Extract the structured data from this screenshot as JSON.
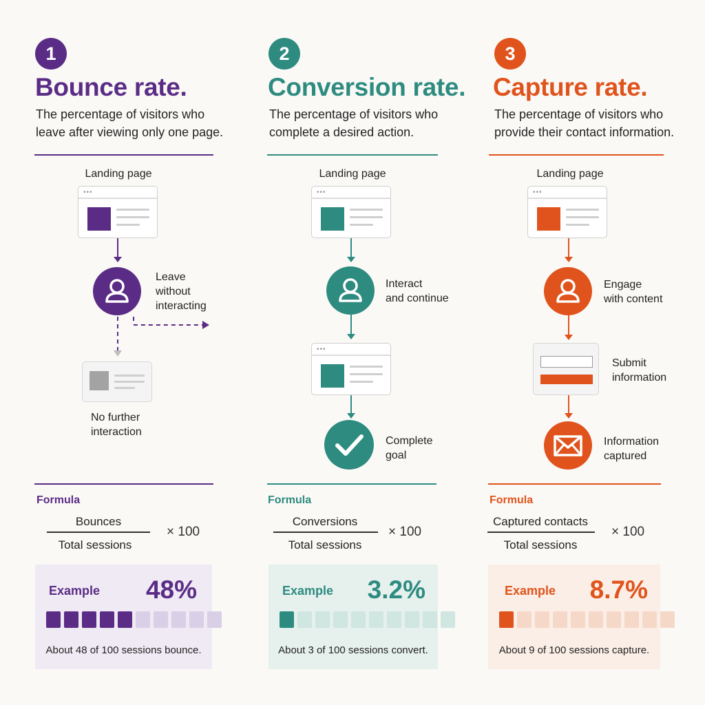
{
  "colors": {
    "purple": "#5b2c86",
    "teal": "#2e8b80",
    "orange": "#e0531c"
  },
  "columns": [
    {
      "number": "1",
      "title": "Bounce rate.",
      "desc": [
        "The percentage of visitors who",
        "leave after viewing only one page."
      ],
      "landing": "Landing page",
      "step1": [
        "Leave",
        "without",
        "interacting"
      ],
      "step2": [
        "No further",
        "interaction"
      ],
      "formula_label": "Formula",
      "numerator": "Bounces",
      "denominator": "Total sessions",
      "multiplier": "× 100",
      "example_label": "Example",
      "example_value": "48%",
      "example_caption": "About 48 of 100 sessions bounce.",
      "filled_fraction": 0.48
    },
    {
      "number": "2",
      "title": "Conversion rate.",
      "desc": [
        "The percentage of visitors who",
        "complete a desired action."
      ],
      "landing": "Landing page",
      "step1": [
        "Interact",
        "and continue"
      ],
      "step3": [
        "Complete",
        "goal"
      ],
      "formula_label": "Formula",
      "numerator": "Conversions",
      "denominator": "Total sessions",
      "multiplier": "× 100",
      "example_label": "Example",
      "example_value": "3.2%",
      "example_caption": "About 3 of 100 sessions convert.",
      "filled_fraction": 0.032
    },
    {
      "number": "3",
      "title": "Capture rate.",
      "desc": [
        "The percentage of visitors who",
        "provide their contact information."
      ],
      "landing": "Landing page",
      "step1": [
        "Engage",
        "with content"
      ],
      "step2": [
        "Submit",
        "information"
      ],
      "step3": [
        "Information",
        "captured"
      ],
      "formula_label": "Formula",
      "numerator": "Captured contacts",
      "denominator": "Total sessions",
      "multiplier": "× 100",
      "example_label": "Example",
      "example_value": "8.7%",
      "example_caption": "About 9 of 100 sessions capture.",
      "filled_fraction": 0.087
    }
  ],
  "icons": [
    "user-icon",
    "checkmark-icon",
    "envelope-icon",
    "form-icon",
    "browser-window-icon"
  ]
}
